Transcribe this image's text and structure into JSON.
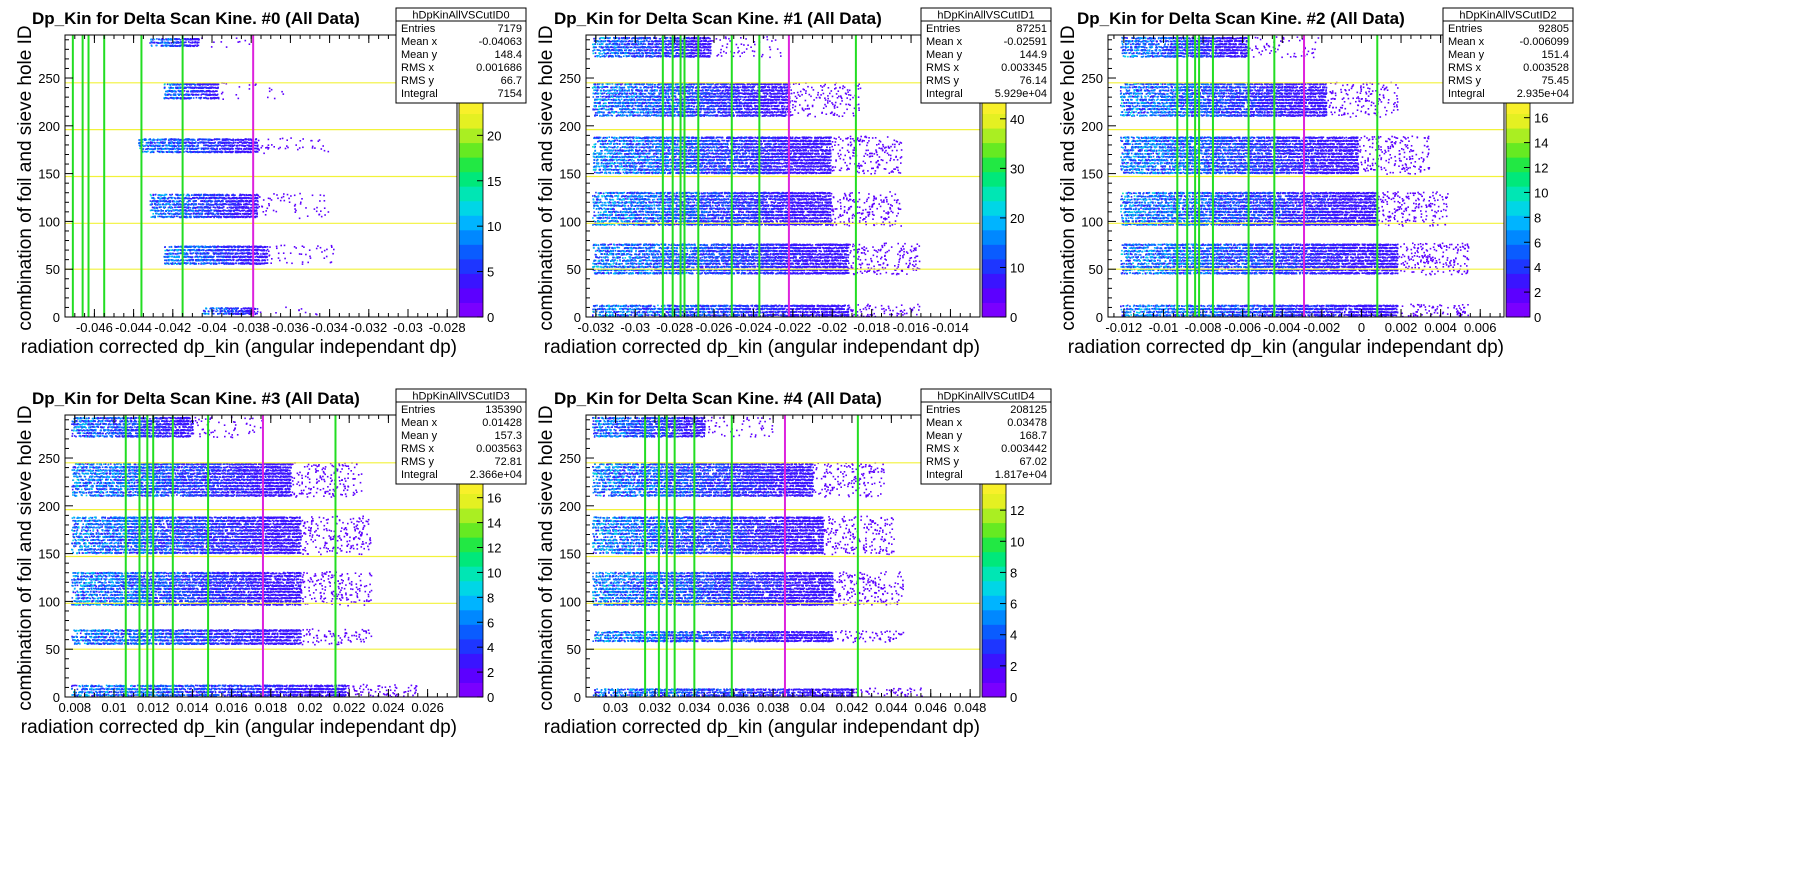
{
  "chart_data": [
    {
      "type": "heatmap",
      "title": "Dp_Kin for Delta Scan Kine. #0 (All Data)",
      "xlabel": "radiation corrected dp_kin (angular independant dp)",
      "ylabel": "combination of foil and sieve hole ID",
      "xlim": [
        -0.0475,
        -0.0275
      ],
      "ylim": [
        0,
        295
      ],
      "xticks": [
        -0.046,
        -0.044,
        -0.042,
        -0.04,
        -0.038,
        -0.036,
        -0.034,
        -0.032,
        -0.03,
        -0.028
      ],
      "yticks": [
        0,
        50,
        100,
        150,
        200,
        250
      ],
      "zmax": 24,
      "zticks": [
        0,
        5,
        10,
        15,
        20
      ],
      "green_lines_x": [
        -0.0471,
        -0.0466,
        -0.0463,
        -0.0455,
        -0.0436,
        -0.0415
      ],
      "magenta_line_x": -0.0379,
      "yellow_lines_y": [
        50,
        98,
        147,
        196,
        245
      ],
      "bands": [
        {
          "y0": 283,
          "y1": 293,
          "x0": -0.0432,
          "x1": -0.0407
        },
        {
          "y0": 228,
          "y1": 246,
          "x0": -0.0425,
          "x1": -0.0397
        },
        {
          "y0": 172,
          "y1": 188,
          "x0": -0.0438,
          "x1": -0.0377
        },
        {
          "y0": 104,
          "y1": 130,
          "x0": -0.0432,
          "x1": -0.0377
        },
        {
          "y0": 55,
          "y1": 76,
          "x0": -0.0425,
          "x1": -0.0372
        },
        {
          "y0": 3,
          "y1": 11,
          "x0": -0.0405,
          "x1": -0.0377
        }
      ],
      "stats": {
        "name": "hDpKinAllVSCutID0",
        "rows": [
          {
            "label": "Entries",
            "value": "7179"
          },
          {
            "label": "Mean x",
            "value": "-0.04063"
          },
          {
            "label": "Mean y",
            "value": "148.4"
          },
          {
            "label": "RMS x",
            "value": "0.001686"
          },
          {
            "label": "RMS y",
            "value": "66.7"
          },
          {
            "label": "Integral",
            "value": "7154"
          }
        ]
      }
    },
    {
      "type": "heatmap",
      "title": "Dp_Kin for Delta Scan Kine. #1 (All Data)",
      "xlabel": "radiation corrected dp_kin (angular independant dp)",
      "ylabel": "combination of foil and sieve hole ID",
      "xlim": [
        -0.0325,
        -0.0125
      ],
      "ylim": [
        0,
        295
      ],
      "xticks": [
        -0.032,
        -0.03,
        -0.028,
        -0.026,
        -0.024,
        -0.022,
        -0.02,
        -0.018,
        -0.016,
        -0.014
      ],
      "yticks": [
        0,
        50,
        100,
        150,
        200,
        250
      ],
      "zmax": 44,
      "zticks": [
        0,
        10,
        20,
        30,
        40
      ],
      "green_lines_x": [
        -0.0286,
        -0.0281,
        -0.0277,
        -0.0275,
        -0.0268,
        -0.0251,
        -0.0237,
        -0.0188
      ],
      "magenta_line_x": -0.0222,
      "yellow_lines_y": [
        50,
        98,
        147,
        196,
        245
      ],
      "bands": [
        {
          "y0": 272,
          "y1": 294,
          "x0": -0.0322,
          "x1": -0.0262
        },
        {
          "y0": 210,
          "y1": 246,
          "x0": -0.0322,
          "x1": -0.0222
        },
        {
          "y0": 150,
          "y1": 190,
          "x0": -0.0322,
          "x1": -0.0201
        },
        {
          "y0": 96,
          "y1": 132,
          "x0": -0.0322,
          "x1": -0.0201
        },
        {
          "y0": 45,
          "y1": 78,
          "x0": -0.0322,
          "x1": -0.0192
        },
        {
          "y0": 1,
          "y1": 14,
          "x0": -0.0322,
          "x1": -0.0192
        }
      ],
      "stats": {
        "name": "hDpKinAllVSCutID1",
        "rows": [
          {
            "label": "Entries",
            "value": "87251"
          },
          {
            "label": "Mean x",
            "value": "-0.02591"
          },
          {
            "label": "Mean y",
            "value": "144.9"
          },
          {
            "label": "RMS x",
            "value": "0.003345"
          },
          {
            "label": "RMS y",
            "value": "76.14"
          },
          {
            "label": "Integral",
            "value": "5.929e+04"
          }
        ]
      }
    },
    {
      "type": "heatmap",
      "title": "Dp_Kin for Delta Scan Kine. #2 (All Data)",
      "xlabel": "radiation corrected dp_kin (angular independant dp)",
      "ylabel": "combination of foil and sieve hole ID",
      "xlim": [
        -0.0128,
        0.0072
      ],
      "ylim": [
        0,
        295
      ],
      "xticks": [
        -0.012,
        -0.01,
        -0.008,
        -0.006,
        -0.004,
        -0.002,
        0,
        0.002,
        0.004,
        0.006
      ],
      "yticks": [
        0,
        50,
        100,
        150,
        200,
        250
      ],
      "zmax": 17.5,
      "zticks": [
        0,
        2,
        4,
        6,
        8,
        10,
        12,
        14,
        16
      ],
      "green_lines_x": [
        -0.0093,
        -0.0088,
        -0.0084,
        -0.0082,
        -0.0075,
        -0.0057,
        -0.0044,
        0.0008
      ],
      "magenta_line_x": -0.0029,
      "yellow_lines_y": [
        50,
        98,
        147,
        196,
        245
      ],
      "bands": [
        {
          "y0": 272,
          "y1": 294,
          "x0": -0.0122,
          "x1": -0.0058
        },
        {
          "y0": 210,
          "y1": 246,
          "x0": -0.0122,
          "x1": -0.0018
        },
        {
          "y0": 150,
          "y1": 190,
          "x0": -0.0122,
          "x1": -0.0002
        },
        {
          "y0": 96,
          "y1": 132,
          "x0": -0.0122,
          "x1": 0.0008
        },
        {
          "y0": 45,
          "y1": 78,
          "x0": -0.0122,
          "x1": 0.0018
        },
        {
          "y0": 1,
          "y1": 14,
          "x0": -0.0122,
          "x1": 0.0018
        }
      ],
      "stats": {
        "name": "hDpKinAllVSCutID2",
        "rows": [
          {
            "label": "Entries",
            "value": "92805"
          },
          {
            "label": "Mean x",
            "value": "-0.006099"
          },
          {
            "label": "Mean y",
            "value": "151.4"
          },
          {
            "label": "RMS x",
            "value": "0.003528"
          },
          {
            "label": "RMS y",
            "value": "75.45"
          },
          {
            "label": "Integral",
            "value": "2.935e+04"
          }
        ]
      }
    },
    {
      "type": "heatmap",
      "title": "Dp_Kin for Delta Scan Kine. #3 (All Data)",
      "xlabel": "radiation corrected dp_kin (angular independant dp)",
      "ylabel": "combination of foil and sieve hole ID",
      "xlim": [
        0.0075,
        0.0275
      ],
      "ylim": [
        0,
        295
      ],
      "xticks": [
        0.008,
        0.01,
        0.012,
        0.014,
        0.016,
        0.018,
        0.02,
        0.022,
        0.024,
        0.026
      ],
      "yticks": [
        0,
        50,
        100,
        150,
        200,
        250
      ],
      "zmax": 17.5,
      "zticks": [
        0,
        2,
        4,
        6,
        8,
        10,
        12,
        14,
        16
      ],
      "green_lines_x": [
        0.0106,
        0.0113,
        0.0117,
        0.012,
        0.013,
        0.0148,
        0.0213
      ],
      "magenta_line_x": 0.0176,
      "yellow_lines_y": [
        50,
        98,
        147,
        196,
        245
      ],
      "bands": [
        {
          "y0": 272,
          "y1": 294,
          "x0": 0.0078,
          "x1": 0.014
        },
        {
          "y0": 210,
          "y1": 246,
          "x0": 0.0078,
          "x1": 0.019
        },
        {
          "y0": 150,
          "y1": 190,
          "x0": 0.0078,
          "x1": 0.0195
        },
        {
          "y0": 96,
          "y1": 132,
          "x0": 0.0078,
          "x1": 0.0195
        },
        {
          "y0": 55,
          "y1": 72,
          "x0": 0.0078,
          "x1": 0.0195
        },
        {
          "y0": 1,
          "y1": 14,
          "x0": 0.0078,
          "x1": 0.0218
        }
      ],
      "stats": {
        "name": "hDpKinAllVSCutID3",
        "rows": [
          {
            "label": "Entries",
            "value": "135390"
          },
          {
            "label": "Mean x",
            "value": "0.01428"
          },
          {
            "label": "Mean y",
            "value": "157.3"
          },
          {
            "label": "RMS x",
            "value": "0.003563"
          },
          {
            "label": "RMS y",
            "value": "72.81"
          },
          {
            "label": "Integral",
            "value": "2.366e+04"
          }
        ]
      }
    },
    {
      "type": "heatmap",
      "title": "Dp_Kin for Delta Scan Kine. #4 (All Data)",
      "xlabel": "radiation corrected dp_kin (angular independant dp)",
      "ylabel": "combination of foil and sieve hole ID",
      "xlim": [
        0.0285,
        0.0485
      ],
      "ylim": [
        0,
        295
      ],
      "xticks": [
        0.03,
        0.032,
        0.034,
        0.036,
        0.038,
        0.04,
        0.042,
        0.044,
        0.046,
        0.048
      ],
      "yticks": [
        0,
        50,
        100,
        150,
        200,
        250
      ],
      "zmax": 14,
      "zticks": [
        0,
        2,
        4,
        6,
        8,
        10,
        12
      ],
      "green_lines_x": [
        0.0315,
        0.0322,
        0.0326,
        0.033,
        0.034,
        0.0359,
        0.0423
      ],
      "magenta_line_x": 0.0386,
      "yellow_lines_y": [
        50,
        98,
        147,
        196,
        245
      ],
      "bands": [
        {
          "y0": 272,
          "y1": 294,
          "x0": 0.0288,
          "x1": 0.0345
        },
        {
          "y0": 210,
          "y1": 246,
          "x0": 0.0288,
          "x1": 0.04
        },
        {
          "y0": 150,
          "y1": 190,
          "x0": 0.0288,
          "x1": 0.0405
        },
        {
          "y0": 96,
          "y1": 132,
          "x0": 0.0288,
          "x1": 0.041
        },
        {
          "y0": 58,
          "y1": 70,
          "x0": 0.0288,
          "x1": 0.041
        },
        {
          "y0": 1,
          "y1": 10,
          "x0": 0.0288,
          "x1": 0.042
        }
      ],
      "stats": {
        "name": "hDpKinAllVSCutID4",
        "rows": [
          {
            "label": "Entries",
            "value": "208125"
          },
          {
            "label": "Mean x",
            "value": "0.03478"
          },
          {
            "label": "Mean y",
            "value": "168.7"
          },
          {
            "label": "RMS x",
            "value": "0.003442"
          },
          {
            "label": "RMS y",
            "value": "67.02"
          },
          {
            "label": "Integral",
            "value": "1.817e+04"
          }
        ]
      }
    }
  ],
  "colors": {
    "green_line": "#22dd22",
    "magenta_line": "#dd22dd",
    "yellow_line": "#f2f23a",
    "frame": "#000000"
  }
}
